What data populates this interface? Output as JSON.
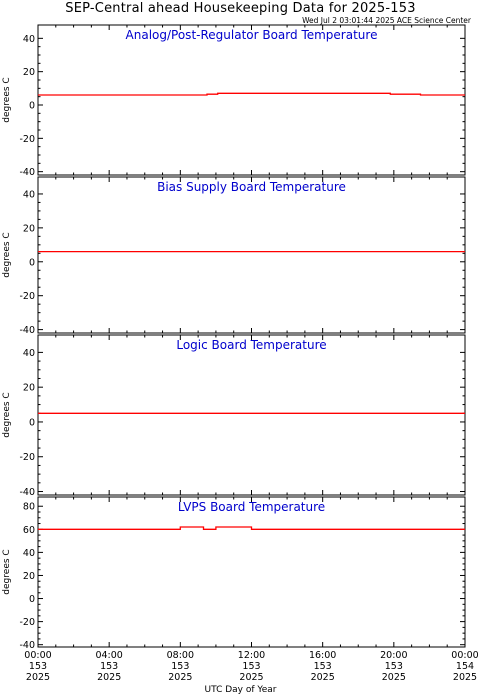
{
  "title": "SEP-Central ahead Housekeeping Data for 2025-153",
  "timestamp": "Wed Jul  2 03:01:44 2025 ACE Science Center",
  "xlabel": "UTC Day of Year",
  "colors": {
    "trace": "#ff0000",
    "panel_title": "#0000cc",
    "axes": "#000000"
  },
  "x_ticks": [
    {
      "t": 0,
      "time": "00:00",
      "doy": "153",
      "year": "2025"
    },
    {
      "t": 4,
      "time": "04:00",
      "doy": "153",
      "year": "2025"
    },
    {
      "t": 8,
      "time": "08:00",
      "doy": "153",
      "year": "2025"
    },
    {
      "t": 12,
      "time": "12:00",
      "doy": "153",
      "year": "2025"
    },
    {
      "t": 16,
      "time": "16:00",
      "doy": "153",
      "year": "2025"
    },
    {
      "t": 20,
      "time": "20:00",
      "doy": "153",
      "year": "2025"
    },
    {
      "t": 24,
      "time": "00:00",
      "doy": "154",
      "year": "2025"
    }
  ],
  "chart_data": [
    {
      "type": "line",
      "title": "Analog/Post-Regulator Board Temperature",
      "ylabel": "degrees C",
      "xlim": [
        0,
        24
      ],
      "ylim": [
        -42,
        48
      ],
      "yticks": [
        -40,
        -20,
        0,
        20,
        40
      ],
      "series": [
        {
          "x": [
            0,
            9.5,
            9.5,
            10.1,
            10.1,
            19.8,
            19.8,
            21.5,
            21.5,
            24
          ],
          "y": [
            6,
            6,
            6.5,
            6.5,
            7,
            7,
            6.5,
            6.5,
            6,
            6
          ]
        }
      ]
    },
    {
      "type": "line",
      "title": "Bias Supply Board Temperature",
      "ylabel": "degrees C",
      "xlim": [
        0,
        24
      ],
      "ylim": [
        -42,
        50
      ],
      "yticks": [
        -40,
        -20,
        0,
        20,
        40
      ],
      "series": [
        {
          "x": [
            0,
            24
          ],
          "y": [
            6,
            6
          ]
        }
      ]
    },
    {
      "type": "line",
      "title": "Logic Board Temperature",
      "ylabel": "degrees C",
      "xlim": [
        0,
        24
      ],
      "ylim": [
        -42,
        50
      ],
      "yticks": [
        -40,
        -20,
        0,
        20,
        40
      ],
      "series": [
        {
          "x": [
            0,
            24
          ],
          "y": [
            5,
            5
          ]
        }
      ]
    },
    {
      "type": "line",
      "title": "LVPS Board Temperature",
      "ylabel": "degrees C",
      "xlim": [
        0,
        24
      ],
      "ylim": [
        -42,
        88
      ],
      "yticks": [
        -40,
        -20,
        0,
        20,
        40,
        60,
        80
      ],
      "series": [
        {
          "x": [
            0,
            8.0,
            8.0,
            9.3,
            9.3,
            10.0,
            10.0,
            12.0,
            12.0,
            24
          ],
          "y": [
            60,
            60,
            62,
            62,
            60,
            60,
            62,
            62,
            60,
            60
          ]
        }
      ]
    }
  ]
}
